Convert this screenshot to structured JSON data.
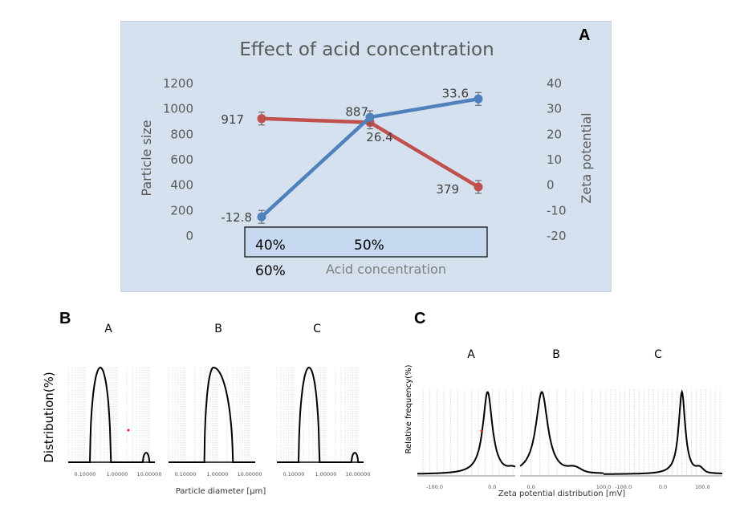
{
  "panel_labels": {
    "A": "A",
    "B": "B",
    "C": "C"
  },
  "chart_data": [
    {
      "id": "A",
      "type": "line",
      "title": "Effect of acid concentration",
      "xlabel": "Acid concentration",
      "ylabel": "Particle size",
      "y2label": "Zeta potential",
      "categories": [
        "40%",
        "50%",
        "60%"
      ],
      "ylim": [
        0,
        1200
      ],
      "yticks": [
        "1200",
        "1000",
        "800",
        "600",
        "400",
        "200",
        "0"
      ],
      "y2lim": [
        -20,
        40
      ],
      "y2ticks": [
        "40",
        "30",
        "20",
        "10",
        "0",
        "-10",
        "-20"
      ],
      "series": [
        {
          "name": "Particle size",
          "axis": "left",
          "color": "#c0504d",
          "values": [
            917,
            887,
            379
          ],
          "labels": [
            "917",
            "887",
            "379"
          ],
          "error_bars": true
        },
        {
          "name": "Zeta potential",
          "axis": "right",
          "color": "#4f81bd",
          "values": [
            -12.8,
            26.4,
            33.6
          ],
          "labels": [
            "-12.8",
            "26.4",
            "33.6"
          ],
          "error_bars": true
        }
      ],
      "background": "#d6e1ef",
      "category_box_color": "#c6d9f0"
    },
    {
      "id": "B",
      "type": "line",
      "title": "",
      "xlabel": "Particle diameter [μm]",
      "ylabel": "Distribution(%)",
      "xscale": "log",
      "subplots": [
        {
          "label": "A",
          "xticks": [
            "0.10000",
            "1.00000",
            "10.00000"
          ],
          "peaks": [
            {
              "center": 0.3,
              "height": 1.0
            },
            {
              "center": 8.0,
              "height": 0.1
            }
          ]
        },
        {
          "label": "B",
          "xticks": [
            "0.10000",
            "1.00000",
            "10.00000"
          ],
          "peaks": [
            {
              "center": 0.75,
              "height": 1.0
            }
          ]
        },
        {
          "label": "C",
          "xticks": [
            "0.10000",
            "1.00000",
            "10.00000"
          ],
          "peaks": [
            {
              "center": 0.3,
              "height": 1.0
            },
            {
              "center": 8.0,
              "height": 0.1
            }
          ]
        }
      ]
    },
    {
      "id": "C",
      "type": "line",
      "title": "",
      "xlabel": "Zeta potential distribution [mV]",
      "ylabel": "Relative frequency(%)",
      "subplots": [
        {
          "label": "A",
          "xticks": [
            "-100.0",
            "0.0"
          ],
          "peak_mV": -12.8
        },
        {
          "label": "B",
          "xticks": [
            "0.0",
            "100.0"
          ],
          "peak_mV": 26.4
        },
        {
          "label": "C",
          "xticks": [
            "-100.0",
            "0.0",
            "100.0"
          ],
          "peak_mV": 33.6
        }
      ]
    }
  ]
}
